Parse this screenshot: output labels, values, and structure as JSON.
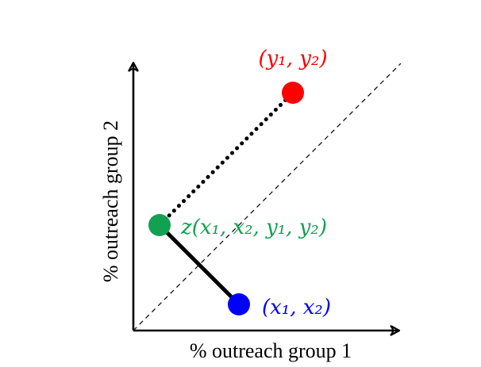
{
  "axes": {
    "x_label": "% outreach group 1",
    "y_label": "% outreach group 2"
  },
  "points": {
    "y_point": {
      "label": "(y₁, y₂)",
      "color": "#ff0000"
    },
    "z_point": {
      "label": "z(x₁, x₂, y₁, y₂)",
      "color": "#12a150"
    },
    "x_point": {
      "label": "(x₁, x₂)",
      "color": "#0000ff"
    }
  },
  "lines": {
    "z_to_y": {
      "style": "dotted",
      "color": "#000000"
    },
    "z_to_x": {
      "style": "solid",
      "color": "#000000"
    },
    "diagonal": {
      "style": "dashed",
      "color": "#000000"
    }
  }
}
